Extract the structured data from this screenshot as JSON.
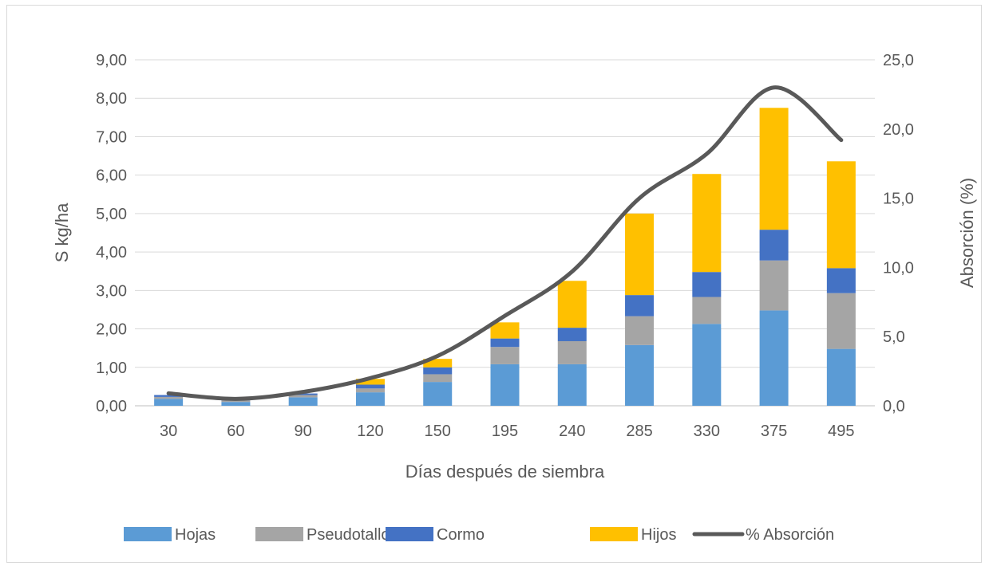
{
  "chart_data": {
    "type": "bar",
    "stacked": true,
    "categories": [
      "30",
      "60",
      "90",
      "120",
      "150",
      "195",
      "240",
      "285",
      "330",
      "375",
      "495"
    ],
    "xlabel": "Días después de siembra",
    "ylabel": "S  kg/ha",
    "y2label": "Absorción (%)",
    "ylim": [
      0,
      9
    ],
    "y2lim": [
      0,
      25
    ],
    "yticks": [
      "0,00",
      "1,00",
      "2,00",
      "3,00",
      "4,00",
      "5,00",
      "6,00",
      "7,00",
      "8,00",
      "9,00"
    ],
    "y2ticks": [
      "0,0",
      "5,0",
      "10,0",
      "15,0",
      "20,0",
      "25,0"
    ],
    "grid": true,
    "legend_position": "bottom",
    "series": [
      {
        "name": "Hojas",
        "color": "#5b9bd5",
        "values": [
          0.18,
          0.1,
          0.22,
          0.35,
          0.62,
          1.08,
          1.08,
          1.58,
          2.13,
          2.48,
          1.48
        ]
      },
      {
        "name": "Pseudotallo",
        "color": "#a5a5a5",
        "values": [
          0.05,
          0.04,
          0.06,
          0.1,
          0.2,
          0.45,
          0.6,
          0.75,
          0.7,
          1.3,
          1.45
        ]
      },
      {
        "name": "Cormo",
        "color": "#4472c4",
        "values": [
          0.05,
          0.03,
          0.04,
          0.1,
          0.18,
          0.22,
          0.35,
          0.55,
          0.65,
          0.8,
          0.65
        ]
      },
      {
        "name": "Hijos",
        "color": "#ffc000",
        "values": [
          0.0,
          0.0,
          0.0,
          0.15,
          0.22,
          0.42,
          1.22,
          2.12,
          2.55,
          3.17,
          2.78
        ]
      }
    ],
    "line_series": {
      "name": "% Absorción",
      "color": "#595959",
      "axis": "secondary",
      "values": [
        0.9,
        0.5,
        1.0,
        2.0,
        3.6,
        6.5,
        9.7,
        15.0,
        18.2,
        23.0,
        19.2
      ]
    }
  }
}
